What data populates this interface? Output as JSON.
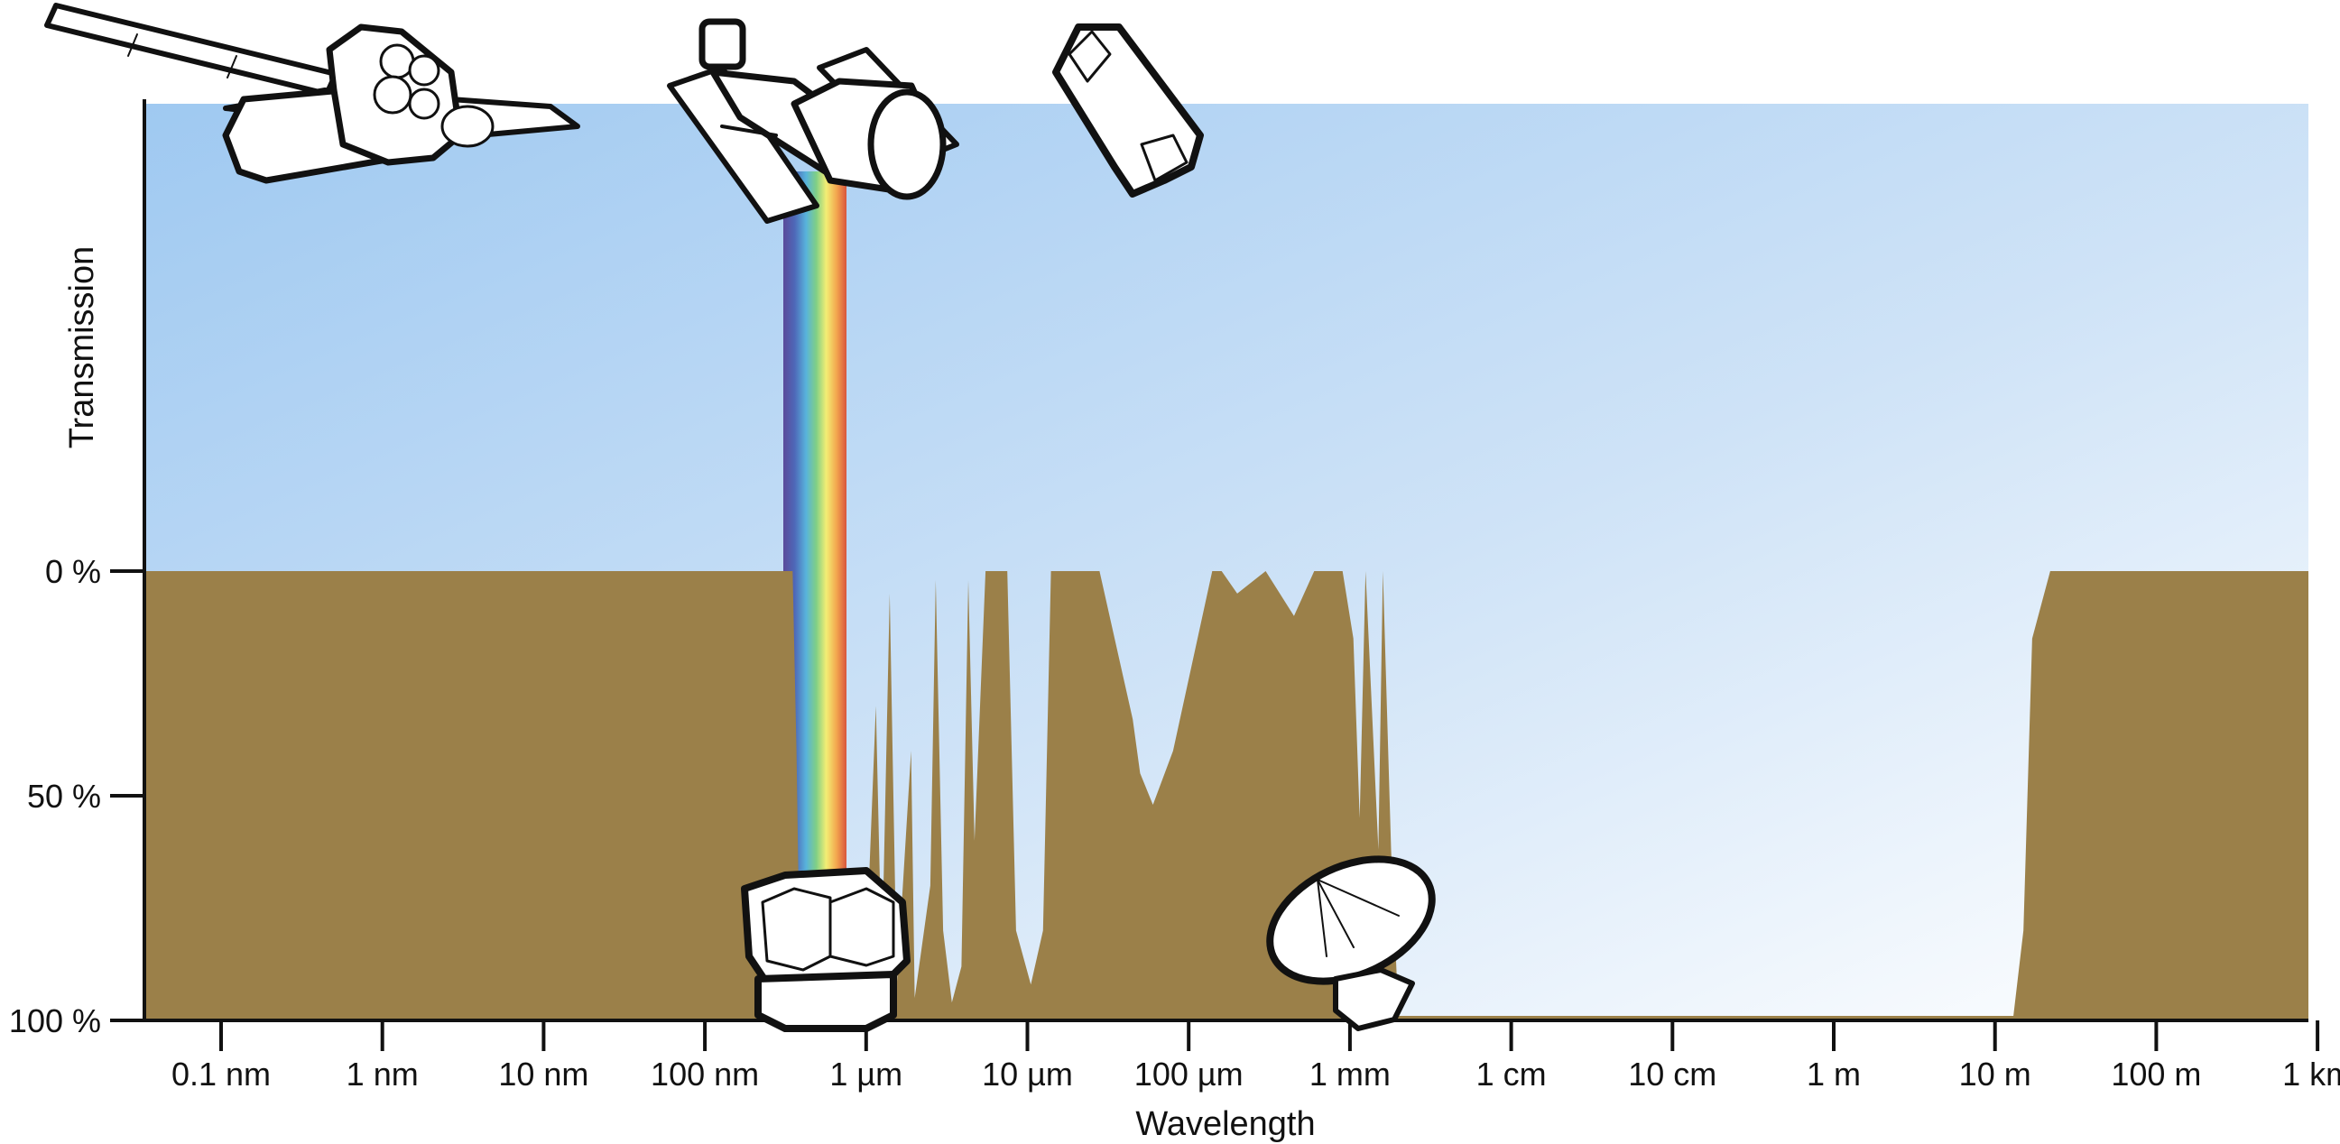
{
  "chart_data": {
    "type": "area",
    "xlabel": "Wavelength",
    "ylabel": "Transmission",
    "x_scale": "log",
    "x_ticks": [
      "0.1 nm",
      "1 nm",
      "10 nm",
      "100 nm",
      "1 µm",
      "10 µm",
      "100 µm",
      "1 mm",
      "1 cm",
      "10 cm",
      "1 m",
      "10 m",
      "100 m",
      "1 km"
    ],
    "y_ticks": [
      "0 %",
      "50 %",
      "100 %"
    ],
    "y_ticks_values": [
      0,
      50,
      100
    ],
    "ylim": [
      0,
      100
    ],
    "series": [
      {
        "x_unit": "m",
        "values_note_unit": "%",
        "points": [
          [
            1e-11,
            0
          ],
          [
            3.5e-07,
            0
          ],
          [
            3.7e-07,
            40
          ],
          [
            3.9e-07,
            95
          ],
          [
            7.5e-07,
            95
          ],
          [
            1e-06,
            85
          ],
          [
            1.15e-06,
            30
          ],
          [
            1.25e-06,
            88
          ],
          [
            1.4e-06,
            5
          ],
          [
            1.55e-06,
            92
          ],
          [
            1.9e-06,
            40
          ],
          [
            2e-06,
            95
          ],
          [
            2.5e-06,
            70
          ],
          [
            2.7e-06,
            2
          ],
          [
            3e-06,
            80
          ],
          [
            3.4e-06,
            96
          ],
          [
            3.9e-06,
            88
          ],
          [
            4.3e-06,
            2
          ],
          [
            4.7e-06,
            60
          ],
          [
            5.5e-06,
            0
          ],
          [
            7.5e-06,
            0
          ],
          [
            8.5e-06,
            80
          ],
          [
            1.05e-05,
            92
          ],
          [
            1.25e-05,
            80
          ],
          [
            1.4e-05,
            0
          ],
          [
            2e-05,
            0
          ],
          [
            2.8e-05,
            0
          ],
          [
            4.5e-05,
            33
          ],
          [
            5e-05,
            45
          ],
          [
            6e-05,
            52
          ],
          [
            8e-05,
            40
          ],
          [
            0.00014,
            0
          ],
          [
            0.00016,
            0
          ],
          [
            0.0002,
            5
          ],
          [
            0.0003,
            0
          ],
          [
            0.00045,
            10
          ],
          [
            0.0006,
            0
          ],
          [
            0.0009,
            0
          ],
          [
            0.00105,
            15
          ],
          [
            0.00115,
            55
          ],
          [
            0.00125,
            0
          ],
          [
            0.0015,
            62
          ],
          [
            0.0016,
            0
          ],
          [
            0.0018,
            62
          ],
          [
            0.002,
            99
          ],
          [
            0.04,
            99
          ],
          [
            10,
            99
          ],
          [
            13,
            99
          ],
          [
            15,
            80
          ],
          [
            17,
            15
          ],
          [
            22,
            0
          ],
          [
            1000,
            0
          ]
        ]
      }
    ],
    "colors": {
      "atmosphere": "#9b8049",
      "sky_top": "#a7cdf1",
      "sky_bottom": "#ffffff",
      "axis": "#111111"
    },
    "illustrations": [
      "space-telescope-1",
      "space-telescope-2",
      "space-telescope-3",
      "visible-light-spectrum",
      "ground-observatory",
      "radio-dish"
    ]
  }
}
